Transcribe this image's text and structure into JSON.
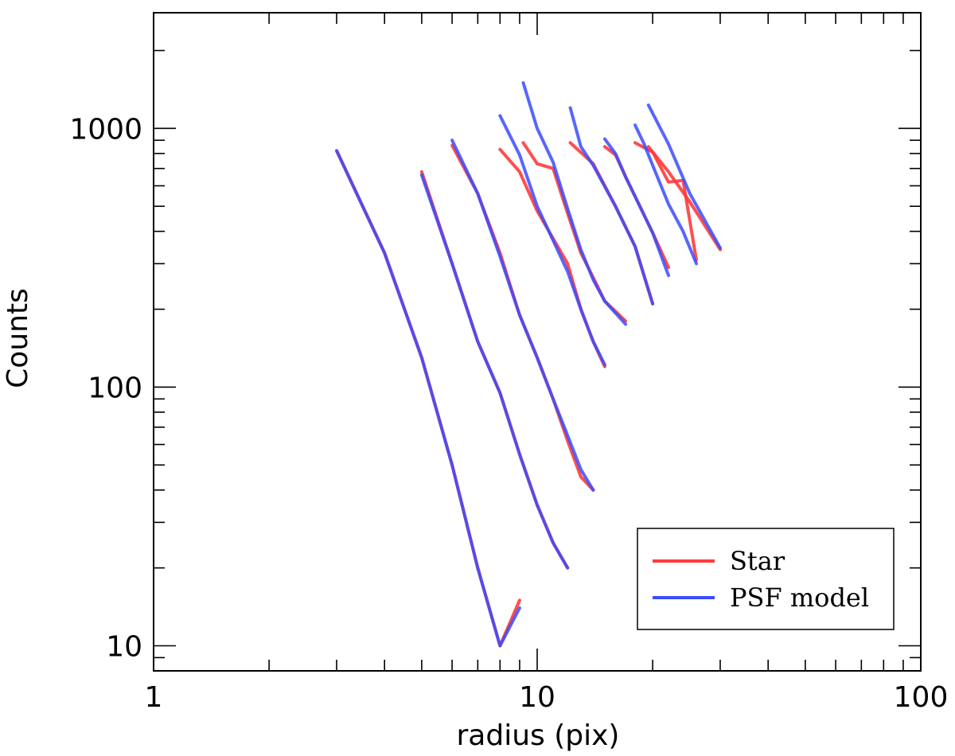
{
  "chart_data": {
    "type": "line",
    "title": "",
    "xlabel": "radius (pix)",
    "ylabel": "Counts",
    "x_scale": "log",
    "y_scale": "log",
    "xlim": [
      1,
      100
    ],
    "ylim": [
      8,
      2800
    ],
    "x_ticks": [
      1,
      10,
      100
    ],
    "x_tick_labels": [
      "1",
      "10",
      "100"
    ],
    "y_ticks": [
      10,
      100,
      1000
    ],
    "y_tick_labels": [
      "10",
      "100",
      "1000"
    ],
    "grid": false,
    "legend": {
      "position": "bottom-right",
      "entries": [
        {
          "label": "Star",
          "color": "#ff3b3b"
        },
        {
          "label": "PSF model",
          "color": "#3b4bff"
        }
      ]
    },
    "series": [
      {
        "name": "Star",
        "group": 1,
        "points": [
          [
            3,
            820
          ],
          [
            4,
            330
          ],
          [
            5,
            130
          ],
          [
            6,
            50
          ],
          [
            7,
            20
          ],
          [
            8,
            10
          ],
          [
            9,
            15
          ]
        ]
      },
      {
        "name": "PSF model",
        "group": 1,
        "points": [
          [
            3,
            820
          ],
          [
            4,
            330
          ],
          [
            5,
            130
          ],
          [
            6,
            50
          ],
          [
            7,
            20
          ],
          [
            8,
            10
          ],
          [
            9,
            14
          ]
        ]
      },
      {
        "name": "Star",
        "group": 2,
        "points": [
          [
            5,
            680
          ],
          [
            6,
            300
          ],
          [
            7,
            150
          ],
          [
            8,
            95
          ],
          [
            9,
            55
          ],
          [
            10,
            35
          ],
          [
            11,
            25
          ],
          [
            12,
            20
          ]
        ]
      },
      {
        "name": "PSF model",
        "group": 2,
        "points": [
          [
            5,
            660
          ],
          [
            6,
            300
          ],
          [
            7,
            150
          ],
          [
            8,
            95
          ],
          [
            9,
            55
          ],
          [
            10,
            35
          ],
          [
            11,
            25
          ],
          [
            12,
            20
          ]
        ]
      },
      {
        "name": "Star",
        "group": 3,
        "points": [
          [
            6,
            860
          ],
          [
            7,
            560
          ],
          [
            8,
            330
          ],
          [
            9,
            190
          ],
          [
            10,
            130
          ],
          [
            11,
            90
          ],
          [
            12,
            62
          ],
          [
            13,
            45
          ],
          [
            14,
            40
          ]
        ]
      },
      {
        "name": "PSF model",
        "group": 3,
        "points": [
          [
            6,
            900
          ],
          [
            7,
            560
          ],
          [
            8,
            320
          ],
          [
            9,
            190
          ],
          [
            10,
            130
          ],
          [
            11,
            90
          ],
          [
            12,
            65
          ],
          [
            13,
            48
          ],
          [
            14,
            40
          ]
        ]
      },
      {
        "name": "Star",
        "group": 4,
        "points": [
          [
            8,
            830
          ],
          [
            9,
            680
          ],
          [
            10,
            480
          ],
          [
            12,
            300
          ],
          [
            13,
            200
          ],
          [
            14,
            150
          ],
          [
            15,
            120
          ]
        ]
      },
      {
        "name": "PSF model",
        "group": 4,
        "points": [
          [
            8,
            1120
          ],
          [
            9,
            790
          ],
          [
            10,
            500
          ],
          [
            12,
            280
          ],
          [
            13,
            200
          ],
          [
            14,
            150
          ],
          [
            15,
            122
          ]
        ]
      },
      {
        "name": "Star",
        "group": 5,
        "points": [
          [
            9.2,
            880
          ],
          [
            10,
            730
          ],
          [
            11,
            700
          ],
          [
            12,
            470
          ],
          [
            13,
            330
          ],
          [
            14,
            265
          ],
          [
            15,
            215
          ],
          [
            17,
            180
          ]
        ]
      },
      {
        "name": "PSF model",
        "group": 5,
        "points": [
          [
            9.2,
            1500
          ],
          [
            10,
            1000
          ],
          [
            11,
            740
          ],
          [
            12,
            490
          ],
          [
            13,
            340
          ],
          [
            14,
            260
          ],
          [
            15,
            215
          ],
          [
            17,
            175
          ]
        ]
      },
      {
        "name": "Star",
        "group": 6,
        "points": [
          [
            12.2,
            880
          ],
          [
            14,
            730
          ],
          [
            16,
            500
          ],
          [
            18,
            350
          ],
          [
            20,
            210
          ]
        ]
      },
      {
        "name": "PSF model",
        "group": 6,
        "points": [
          [
            12.2,
            1200
          ],
          [
            13,
            850
          ],
          [
            14,
            720
          ],
          [
            16,
            500
          ],
          [
            18,
            350
          ],
          [
            20,
            210
          ]
        ]
      },
      {
        "name": "Star",
        "group": 7,
        "points": [
          [
            15,
            850
          ],
          [
            16,
            790
          ],
          [
            17,
            650
          ],
          [
            20,
            395
          ],
          [
            22,
            290
          ]
        ]
      },
      {
        "name": "PSF model",
        "group": 7,
        "points": [
          [
            15,
            910
          ],
          [
            16,
            800
          ],
          [
            17,
            650
          ],
          [
            20,
            395
          ],
          [
            22,
            270
          ]
        ]
      },
      {
        "name": "Star",
        "group": 8,
        "points": [
          [
            18,
            880
          ],
          [
            20,
            810
          ],
          [
            22,
            620
          ],
          [
            24,
            630
          ],
          [
            26,
            310
          ]
        ]
      },
      {
        "name": "PSF model",
        "group": 8,
        "points": [
          [
            18,
            1030
          ],
          [
            19,
            870
          ],
          [
            20,
            720
          ],
          [
            22,
            510
          ],
          [
            24,
            400
          ],
          [
            26,
            300
          ]
        ]
      },
      {
        "name": "Star",
        "group": 9,
        "points": [
          [
            19.5,
            850
          ],
          [
            22,
            680
          ],
          [
            25,
            520
          ],
          [
            30,
            340
          ]
        ]
      },
      {
        "name": "PSF model",
        "group": 9,
        "points": [
          [
            19.5,
            1230
          ],
          [
            22,
            870
          ],
          [
            25,
            560
          ],
          [
            30,
            345
          ]
        ]
      }
    ]
  }
}
